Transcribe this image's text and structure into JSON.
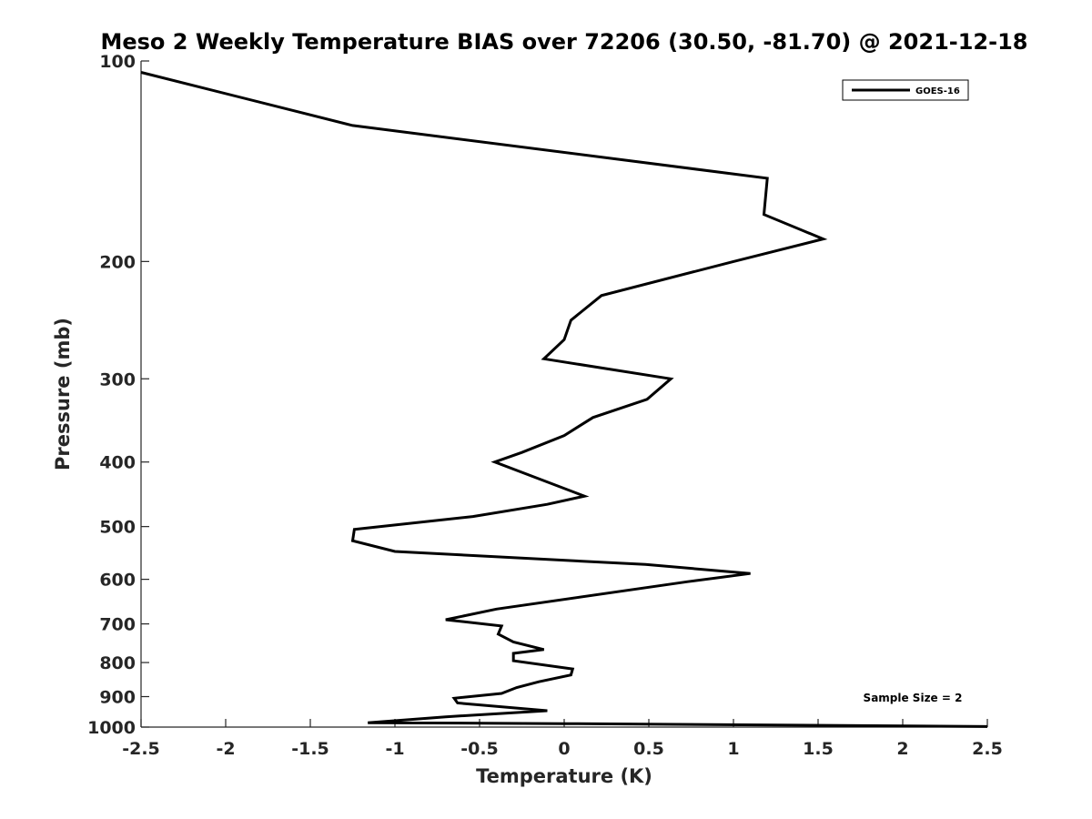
{
  "chart_data": {
    "type": "line",
    "title": "Meso 2 Weekly Temperature BIAS over 72206 (30.50, -81.70) @ 2021-12-18",
    "xlabel": "Temperature (K)",
    "ylabel": "Pressure (mb)",
    "xlim": [
      -2.5,
      2.5
    ],
    "ylim": [
      1000,
      100
    ],
    "yscale": "log",
    "x_ticks": [
      -2.5,
      -2,
      -1.5,
      -1,
      -0.5,
      0,
      0.5,
      1,
      1.5,
      2,
      2.5
    ],
    "x_tick_labels": [
      "-2.5",
      "-2",
      "-1.5",
      "-1",
      "-0.5",
      "0",
      "0.5",
      "1",
      "1.5",
      "2",
      "2.5"
    ],
    "y_ticks": [
      100,
      200,
      300,
      400,
      500,
      600,
      700,
      800,
      900,
      1000
    ],
    "y_tick_labels": [
      "100",
      "200",
      "300",
      "400",
      "500",
      "600",
      "700",
      "800",
      "900",
      "1000"
    ],
    "grid": false,
    "legend_position": "top-right",
    "series": [
      {
        "name": "GOES-16",
        "color": "#000000",
        "points": [
          [
            -2.5,
            104
          ],
          [
            -1.25,
            125
          ],
          [
            1.2,
            150
          ],
          [
            1.18,
            170
          ],
          [
            1.53,
            185
          ],
          [
            1.0,
            200
          ],
          [
            0.22,
            225
          ],
          [
            0.04,
            245
          ],
          [
            0.0,
            262
          ],
          [
            -0.12,
            280
          ],
          [
            0.63,
            300
          ],
          [
            0.49,
            322
          ],
          [
            0.17,
            343
          ],
          [
            0.0,
            365
          ],
          [
            -0.25,
            387
          ],
          [
            -0.41,
            400
          ],
          [
            0.12,
            450
          ],
          [
            -0.1,
            463
          ],
          [
            -0.54,
            483
          ],
          [
            -1.24,
            505
          ],
          [
            -1.25,
            525
          ],
          [
            -1.0,
            545
          ],
          [
            0.48,
            570
          ],
          [
            1.1,
            588
          ],
          [
            0.73,
            605
          ],
          [
            -0.4,
            665
          ],
          [
            -0.7,
            690
          ],
          [
            -0.37,
            705
          ],
          [
            -0.39,
            725
          ],
          [
            -0.3,
            745
          ],
          [
            -0.12,
            765
          ],
          [
            -0.3,
            775
          ],
          [
            -0.3,
            795
          ],
          [
            0.05,
            818
          ],
          [
            0.04,
            835
          ],
          [
            -0.15,
            855
          ],
          [
            -0.28,
            872
          ],
          [
            -0.37,
            890
          ],
          [
            -0.65,
            905
          ],
          [
            -0.63,
            920
          ],
          [
            -0.1,
            945
          ],
          [
            -0.7,
            965
          ],
          [
            -1.16,
            985
          ],
          [
            0.0,
            988
          ],
          [
            2.5,
            998
          ]
        ]
      }
    ],
    "annotations": [
      "Sample Size = 2"
    ]
  }
}
